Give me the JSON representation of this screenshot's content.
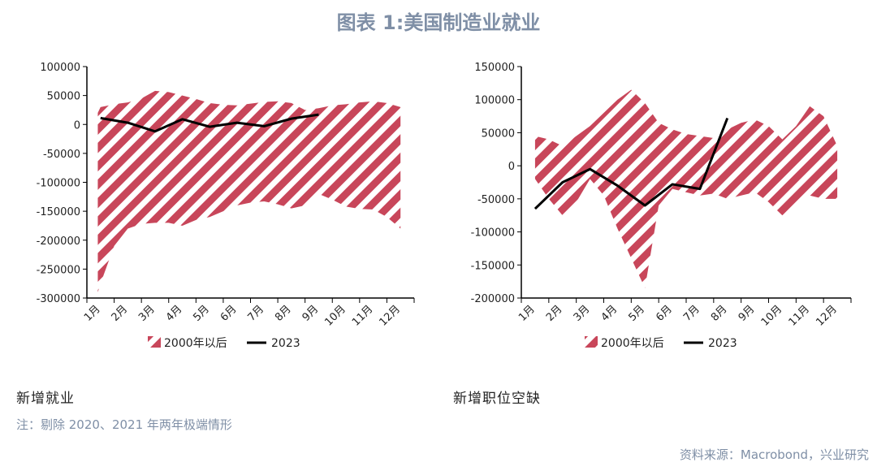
{
  "title": "图表 1:美国制造业就业",
  "note": "注：剔除 2020、2021 年两年极端情形",
  "source": "资料来源：Macrobond，兴业研究",
  "colors": {
    "band": "#c8465a",
    "line": "#000000",
    "title": "#7f8fa6"
  },
  "chart_data": [
    {
      "type": "area",
      "caption": "新增就业",
      "categories": [
        "1月",
        "2月",
        "3月",
        "4月",
        "5月",
        "6月",
        "7月",
        "8月",
        "9月",
        "10月",
        "11月",
        "12月"
      ],
      "ylim": [
        -300000,
        100000
      ],
      "yticks": [
        100000,
        50000,
        0,
        -50000,
        -100000,
        -150000,
        -200000,
        -250000,
        -300000
      ],
      "ytick_labels": [
        "100000",
        "50000",
        "0",
        "-50000",
        "-100000",
        "-150000",
        "-200000",
        "-250000",
        "-300000"
      ],
      "series": [
        {
          "name": "2000年以后",
          "kind": "range",
          "x": [
            0.9,
            1,
            1.5,
            2,
            2.5,
            3,
            3.5,
            4,
            4.5,
            5,
            5.5,
            6,
            6.5,
            7,
            7.5,
            8,
            8.5,
            9,
            9.5,
            10,
            10.5,
            11,
            11.5,
            12
          ],
          "upper": [
            20000,
            30000,
            35000,
            38000,
            45000,
            58000,
            56000,
            50000,
            44000,
            37000,
            34000,
            33000,
            36000,
            39000,
            40000,
            37000,
            25000,
            28000,
            33000,
            35000,
            38000,
            40000,
            37000,
            30000
          ],
          "lower": [
            -290000,
            -275000,
            -210000,
            -180000,
            -172000,
            -170000,
            -170000,
            -175000,
            -165000,
            -160000,
            -150000,
            -140000,
            -135000,
            -133000,
            -138000,
            -145000,
            -140000,
            -120000,
            -130000,
            -142000,
            -146000,
            -147000,
            -160000,
            -180000
          ]
        },
        {
          "name": "2023",
          "kind": "line",
          "x": [
            1,
            2,
            3,
            4,
            5,
            6,
            7,
            8,
            9
          ],
          "values": [
            11000,
            3000,
            -12000,
            9000,
            -4000,
            3000,
            -3000,
            10000,
            17000
          ]
        }
      ]
    },
    {
      "type": "area",
      "caption": "新增职位空缺",
      "categories": [
        "1月",
        "2月",
        "3月",
        "4月",
        "5月",
        "6月",
        "7月",
        "8月",
        "9月",
        "10月",
        "11月",
        "12月"
      ],
      "ylim": [
        -200000,
        150000
      ],
      "yticks": [
        150000,
        100000,
        50000,
        0,
        -50000,
        -100000,
        -150000,
        -200000
      ],
      "ytick_labels": [
        "150000",
        "100000",
        "50000",
        "0",
        "-50000",
        "-100000",
        "-150000",
        "-200000"
      ],
      "series": [
        {
          "name": "2000年以后",
          "kind": "range",
          "x": [
            1,
            1.5,
            2,
            2.5,
            3,
            3.5,
            4,
            4.5,
            5,
            5.5,
            6,
            6.5,
            7,
            7.5,
            8,
            8.5,
            9,
            9.5,
            10,
            10.5,
            11,
            11.5,
            12
          ],
          "upper": [
            45000,
            40000,
            30000,
            45000,
            60000,
            80000,
            100000,
            115000,
            95000,
            65000,
            55000,
            48000,
            45000,
            42000,
            55000,
            65000,
            70000,
            60000,
            40000,
            60000,
            90000,
            75000,
            30000
          ],
          "lower": [
            -20000,
            -50000,
            -75000,
            -55000,
            -20000,
            -45000,
            -95000,
            -140000,
            -185000,
            -60000,
            -35000,
            -40000,
            -45000,
            -42000,
            -50000,
            -45000,
            -40000,
            -55000,
            -75000,
            -60000,
            -45000,
            -50000,
            -50000
          ]
        },
        {
          "name": "2023",
          "kind": "line",
          "x": [
            1,
            2,
            3,
            4,
            5,
            6,
            7,
            8
          ],
          "values": [
            -65000,
            -25000,
            -5000,
            -30000,
            -60000,
            -28000,
            -35000,
            72000
          ]
        }
      ]
    }
  ]
}
